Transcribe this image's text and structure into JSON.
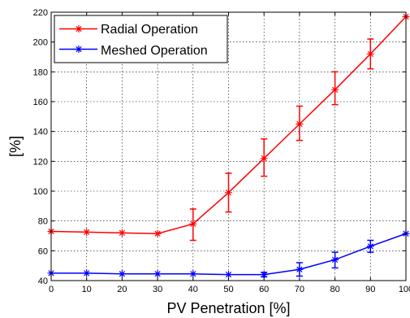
{
  "chart_data": {
    "type": "line",
    "xlabel": "PV Penetration [%]",
    "ylabel": "[%]",
    "xlim": [
      0,
      100
    ],
    "ylim": [
      40,
      220
    ],
    "xticks": [
      0,
      10,
      20,
      30,
      40,
      50,
      60,
      70,
      80,
      90,
      100
    ],
    "yticks": [
      40,
      60,
      80,
      100,
      120,
      140,
      160,
      180,
      200,
      220
    ],
    "grid": true,
    "legend_position": "top-left",
    "x": [
      0,
      10,
      20,
      30,
      40,
      50,
      60,
      70,
      80,
      90,
      100
    ],
    "series": [
      {
        "name": "Radial Operation",
        "color": "#ff0000",
        "values": [
          73,
          72.5,
          72,
          71.5,
          78,
          99,
          122,
          145,
          168,
          192,
          217
        ],
        "error_low": [
          null,
          null,
          null,
          null,
          67,
          86,
          110,
          134,
          158,
          182,
          null
        ],
        "error_high": [
          null,
          null,
          null,
          null,
          88,
          112,
          135,
          157,
          180,
          202,
          null
        ]
      },
      {
        "name": "Meshed Operation",
        "color": "#0000ff",
        "values": [
          45,
          45,
          44.5,
          44.5,
          44.5,
          44,
          44,
          47.5,
          54,
          63,
          71.5
        ],
        "error_low": [
          null,
          null,
          null,
          null,
          null,
          null,
          42.5,
          43,
          48.5,
          59,
          null
        ],
        "error_high": [
          null,
          null,
          null,
          null,
          null,
          null,
          45.5,
          52,
          59,
          67,
          null
        ]
      }
    ]
  }
}
